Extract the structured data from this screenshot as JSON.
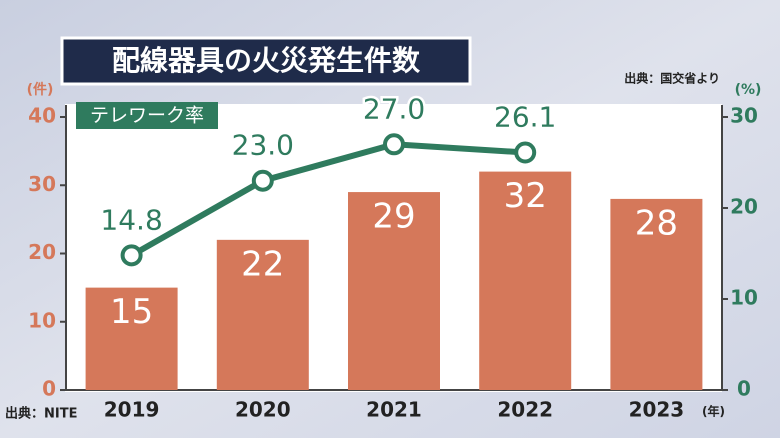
{
  "chart_data": {
    "type": "combo",
    "title": "配線器具の火災発生件数",
    "source": "出典：NITE",
    "credit": "出典：国交省より",
    "categories": [
      "2019",
      "2020",
      "2021",
      "2022",
      "2023"
    ],
    "xlabel": "(年)",
    "ylabel": "(件)",
    "ylim": [
      0,
      40
    ],
    "yticks": [
      0,
      10,
      20,
      30,
      40
    ],
    "y2label": "(%)",
    "y2lim": [
      0,
      30
    ],
    "y2ticks": [
      0,
      10,
      20,
      30
    ],
    "series": [
      {
        "type": "bar",
        "color": "#d5785a",
        "values": [
          15,
          22,
          29,
          32,
          28
        ]
      },
      {
        "type": "line",
        "name": "テレワーク率",
        "axis": "y2",
        "color": "#2f7b5e",
        "values": [
          14.8,
          23.0,
          27.0,
          26.1,
          null
        ],
        "value_labels": [
          "14.8",
          "23.0",
          "27.0",
          "26.1",
          null
        ]
      }
    ]
  }
}
